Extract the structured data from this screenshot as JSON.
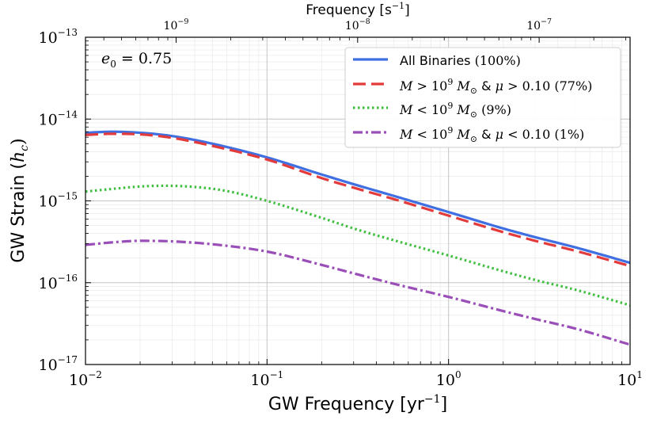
{
  "chart_data": {
    "type": "line",
    "xscale": "log",
    "yscale": "log",
    "xlim": [
      0.01,
      10
    ],
    "ylim": [
      1e-17,
      1e-13
    ],
    "grid": true,
    "legend_position": "top-right",
    "xlabel": "GW Frequency [yr",
    "xlabel_sup": "−1",
    "xlabel_close": "]",
    "ylabel": "GW Strain (",
    "ylabel_var": "h",
    "ylabel_sub": "c",
    "ylabel_close": ")",
    "top_xlabel": "Frequency [s",
    "top_xlabel_sup": "−1",
    "top_xlabel_close": "]",
    "annotation": "e",
    "annotation_sub": "0",
    "annotation_value": " = 0.75",
    "x_ticks": [
      {
        "value": 0.01,
        "base": "10",
        "exp": "−2"
      },
      {
        "value": 0.1,
        "base": "10",
        "exp": "−1"
      },
      {
        "value": 1,
        "base": "10",
        "exp": "0"
      },
      {
        "value": 10,
        "base": "10",
        "exp": "1"
      }
    ],
    "y_ticks": [
      {
        "value": 1e-13,
        "base": "10",
        "exp": "−13"
      },
      {
        "value": 1e-14,
        "base": "10",
        "exp": "−14"
      },
      {
        "value": 1e-15,
        "base": "10",
        "exp": "−15"
      },
      {
        "value": 1e-16,
        "base": "10",
        "exp": "−16"
      },
      {
        "value": 1e-17,
        "base": "10",
        "exp": "−17"
      }
    ],
    "top_ticks": [
      {
        "value_s": 1e-09,
        "base": "10",
        "exp": "−9"
      },
      {
        "value_s": 1e-08,
        "base": "10",
        "exp": "−8"
      },
      {
        "value_s": 1e-07,
        "base": "10",
        "exp": "−7"
      }
    ],
    "seconds_per_year": 31557600,
    "series": [
      {
        "name": "All Binaries",
        "legend_label": "All Binaries (100%)",
        "color": "#3f6fe0",
        "style": "solid",
        "x": [
          0.01,
          0.014,
          0.02,
          0.03,
          0.05,
          0.1,
          0.2,
          0.3,
          0.5,
          1,
          2,
          3,
          5,
          10
        ],
        "y": [
          6.8e-15,
          7e-15,
          6.8e-15,
          6.2e-15,
          5e-15,
          3.4e-15,
          2.1e-15,
          1.6e-15,
          1.15e-15,
          7.3e-16,
          4.6e-16,
          3.6e-16,
          2.7e-16,
          1.75e-16
        ]
      },
      {
        "name": "M > 1e9 & mu > 0.10",
        "legend_label": "M > 10⁹ M⊙ & μ > 0.10 (77%)",
        "color": "#e33b3b",
        "style": "dashed",
        "x": [
          0.01,
          0.014,
          0.02,
          0.03,
          0.05,
          0.1,
          0.2,
          0.3,
          0.5,
          1,
          2,
          3,
          5,
          10
        ],
        "y": [
          6.4e-15,
          6.6e-15,
          6.5e-15,
          5.9e-15,
          4.7e-15,
          3.2e-15,
          1.9e-15,
          1.45e-15,
          1.05e-15,
          6.6e-16,
          4.15e-16,
          3.25e-16,
          2.45e-16,
          1.6e-16
        ]
      },
      {
        "name": "M < 1e9",
        "legend_label": "M < 10⁹ M⊙ (9%)",
        "color": "#3fbf3f",
        "style": "dotted",
        "x": [
          0.01,
          0.015,
          0.02,
          0.027,
          0.04,
          0.06,
          0.1,
          0.2,
          0.3,
          0.5,
          1,
          2,
          3,
          5,
          10
        ],
        "y": [
          1.3e-15,
          1.42e-15,
          1.5e-15,
          1.53e-15,
          1.48e-15,
          1.32e-15,
          1e-15,
          6.2e-16,
          4.6e-16,
          3.3e-16,
          2.15e-16,
          1.38e-16,
          1.08e-16,
          8.2e-17,
          5.3e-17
        ]
      },
      {
        "name": "M < 1e9 & mu < 0.10",
        "legend_label": "M < 10⁹ M⊙ & μ < 0.10 (1%)",
        "color": "#9a4fb8",
        "style": "dashdot",
        "x": [
          0.01,
          0.015,
          0.02,
          0.03,
          0.05,
          0.1,
          0.2,
          0.3,
          0.5,
          1,
          2,
          3,
          5,
          10
        ],
        "y": [
          2.9e-16,
          3.15e-16,
          3.25e-16,
          3.2e-16,
          2.95e-16,
          2.4e-16,
          1.65e-16,
          1.3e-16,
          9.7e-17,
          6.7e-17,
          4.5e-17,
          3.6e-17,
          2.75e-17,
          1.75e-17
        ]
      }
    ],
    "legend_entries": [
      {
        "var1": "All Binaries",
        "rest": " (100%)"
      },
      {
        "var1": "M",
        "op1": " > 10",
        "sup": "9",
        "msun": " M",
        "msun_sub": "⊙",
        "amp": "  &  ",
        "var2": "μ",
        "op2": " > 0.10 (77%)"
      },
      {
        "var1": "M",
        "op1": " < 10",
        "sup": "9",
        "msun": " M",
        "msun_sub": "⊙",
        "rest": " (9%)"
      },
      {
        "var1": "M",
        "op1": " < 10",
        "sup": "9",
        "msun": " M",
        "msun_sub": "⊙",
        "amp": "  &  ",
        "var2": "μ",
        "op2": " < 0.10 (1%)"
      }
    ]
  }
}
